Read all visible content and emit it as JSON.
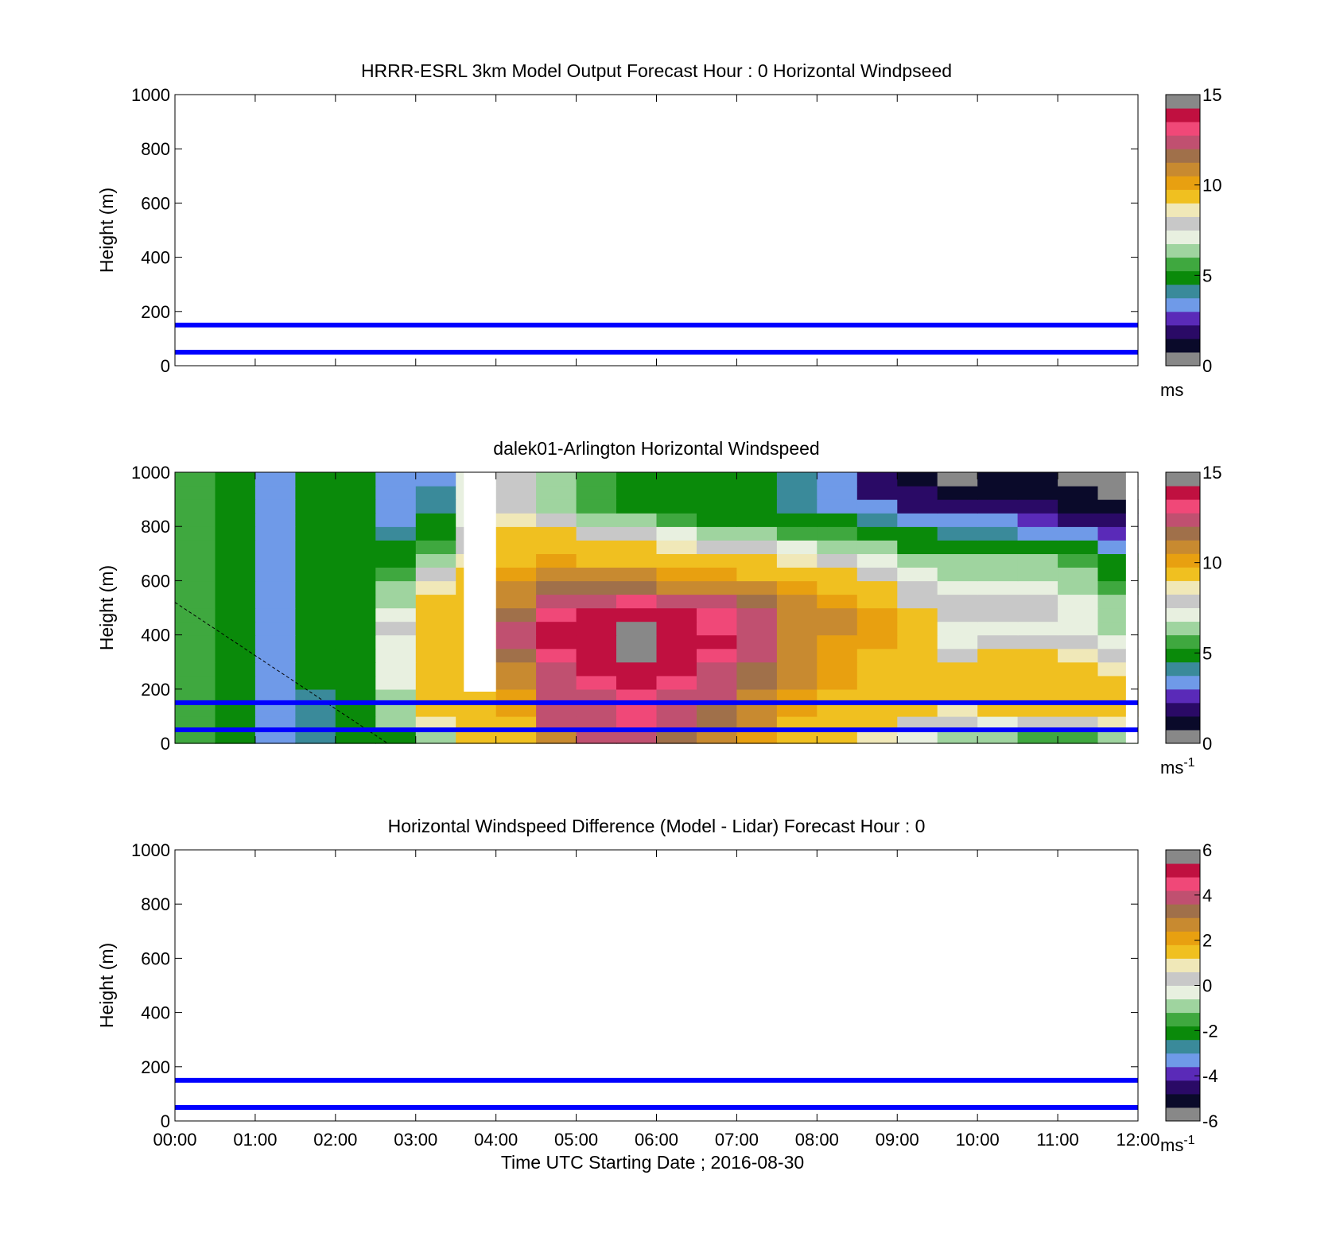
{
  "chart_data": [
    {
      "type": "heatmap",
      "title": "HRRR-ESRL 3km Model Output   Forecast Hour : 0 Horizontal Windpseed",
      "ylabel": "Height (m)",
      "xlabel": "",
      "ylim": [
        0,
        1000
      ],
      "xlim": [
        "00:00",
        "12:00"
      ],
      "yticks": [
        "0",
        "200",
        "400",
        "600",
        "800",
        "1000"
      ],
      "xticks": [],
      "hlines": [
        150,
        50
      ],
      "hline_color": "#0000ff",
      "colorbar": {
        "ticks": [
          "0",
          "5",
          "10",
          "15"
        ],
        "unit": "ms",
        "unit_sup": "",
        "range": [
          0,
          15
        ]
      },
      "field": "empty"
    },
    {
      "type": "heatmap",
      "title": "dalek01-Arlington  Horizontal Windspeed",
      "ylabel": "Height (m)",
      "xlabel": "",
      "ylim": [
        0,
        1000
      ],
      "xlim": [
        "00:00",
        "12:00"
      ],
      "yticks": [
        "0",
        "200",
        "400",
        "600",
        "800",
        "1000"
      ],
      "xticks": [],
      "hlines": [
        150,
        50
      ],
      "hline_color": "#0000ff",
      "colorbar": {
        "ticks": [
          "0",
          "5",
          "10",
          "15"
        ],
        "unit": "ms",
        "unit_sup": "-1",
        "range": [
          0,
          15
        ]
      },
      "field": "lidar",
      "speed_matrix_note_free": true,
      "heights": [
        25,
        75,
        125,
        175,
        225,
        275,
        325,
        375,
        425,
        475,
        525,
        575,
        625,
        675,
        725,
        775,
        825,
        875,
        925,
        975
      ],
      "times_hours": [
        0.25,
        0.75,
        1.25,
        1.75,
        2.25,
        2.75,
        3.25,
        3.75,
        4.25,
        4.75,
        5.25,
        5.75,
        6.25,
        6.75,
        7.25,
        7.75,
        8.25,
        8.75,
        9.25,
        9.75,
        10.25,
        10.75,
        11.25,
        11.75
      ],
      "speed": [
        [
          5.5,
          5.0,
          3.5,
          4.0,
          4.5,
          5.0,
          6.5,
          9.5,
          9.0,
          11.0,
          12.0,
          12.5,
          11.5,
          11.0,
          10.0,
          9.5,
          9.0,
          8.5,
          7.0,
          6.5,
          6.0,
          5.5,
          5.5,
          6.0
        ],
        [
          5.5,
          5.0,
          3.5,
          4.0,
          4.5,
          6.0,
          8.5,
          9.5,
          9.5,
          12.0,
          12.5,
          13.0,
          12.0,
          11.5,
          10.5,
          9.5,
          9.5,
          9.0,
          8.0,
          7.5,
          7.0,
          7.5,
          8.0,
          8.5
        ],
        [
          5.5,
          5.0,
          3.5,
          4.0,
          4.5,
          6.5,
          9.0,
          9.5,
          10.0,
          12.0,
          12.5,
          13.0,
          12.5,
          11.5,
          11.0,
          10.0,
          9.5,
          9.0,
          9.0,
          8.5,
          9.0,
          9.0,
          9.0,
          9.0
        ],
        [
          5.5,
          5.0,
          3.5,
          4.0,
          4.5,
          6.5,
          9.0,
          9.5,
          10.0,
          12.0,
          12.5,
          13.0,
          12.5,
          12.0,
          11.0,
          10.0,
          9.5,
          9.5,
          9.0,
          9.0,
          9.0,
          9.0,
          9.0,
          9.0
        ],
        [
          5.5,
          5.0,
          3.5,
          4.5,
          5.0,
          7.0,
          9.0,
          9.5,
          10.5,
          12.0,
          13.0,
          13.5,
          13.0,
          12.0,
          11.5,
          10.5,
          10.0,
          9.5,
          9.0,
          9.0,
          9.5,
          9.0,
          9.0,
          9.0
        ],
        [
          5.5,
          5.0,
          3.5,
          4.5,
          5.0,
          7.0,
          9.0,
          9.5,
          11.0,
          12.5,
          13.5,
          14.0,
          13.5,
          12.5,
          11.5,
          11.0,
          10.0,
          9.5,
          9.0,
          9.0,
          9.5,
          9.0,
          9.0,
          8.5
        ],
        [
          5.5,
          5.0,
          3.5,
          4.5,
          5.0,
          7.0,
          9.0,
          9.5,
          11.5,
          13.0,
          14.0,
          14.5,
          14.0,
          13.0,
          12.0,
          11.0,
          10.0,
          9.5,
          9.0,
          8.0,
          9.0,
          9.0,
          8.5,
          7.5
        ],
        [
          5.5,
          5.0,
          3.5,
          4.5,
          5.0,
          7.0,
          9.0,
          9.5,
          12.0,
          13.5,
          14.0,
          14.5,
          14.0,
          13.5,
          12.5,
          11.0,
          10.0,
          10.0,
          9.0,
          7.0,
          8.0,
          8.0,
          7.5,
          7.0
        ],
        [
          5.5,
          5.0,
          3.5,
          4.5,
          5.0,
          7.5,
          9.0,
          9.5,
          12.0,
          13.5,
          14.0,
          14.5,
          14.0,
          13.0,
          12.0,
          11.0,
          10.5,
          10.0,
          9.0,
          7.0,
          7.0,
          7.0,
          7.0,
          6.5
        ],
        [
          5.5,
          5.0,
          3.5,
          4.5,
          5.0,
          7.0,
          9.0,
          9.5,
          11.5,
          13.0,
          13.5,
          14.0,
          13.5,
          13.0,
          12.0,
          11.0,
          10.5,
          10.0,
          9.0,
          7.5,
          7.5,
          7.5,
          7.0,
          6.5
        ],
        [
          5.5,
          5.0,
          3.5,
          4.5,
          5.0,
          6.5,
          9.0,
          9.5,
          11.0,
          12.5,
          12.5,
          13.0,
          12.5,
          12.0,
          11.5,
          11.0,
          10.0,
          9.5,
          8.0,
          7.5,
          7.5,
          7.5,
          7.0,
          6.0
        ],
        [
          5.5,
          5.0,
          3.5,
          4.5,
          5.0,
          6.0,
          8.5,
          9.5,
          10.5,
          11.5,
          11.5,
          11.5,
          11.0,
          11.0,
          10.5,
          10.0,
          9.5,
          9.0,
          7.5,
          7.0,
          7.0,
          7.0,
          6.5,
          5.5
        ],
        [
          5.5,
          5.0,
          3.5,
          4.5,
          5.0,
          5.5,
          7.5,
          9.0,
          10.0,
          10.5,
          10.5,
          10.5,
          10.0,
          10.0,
          9.5,
          9.5,
          9.0,
          8.0,
          7.0,
          6.5,
          6.5,
          6.5,
          6.0,
          5.0
        ],
        [
          5.5,
          5.0,
          3.5,
          4.5,
          5.0,
          5.0,
          6.5,
          8.5,
          9.5,
          10.0,
          9.5,
          9.5,
          9.5,
          9.0,
          9.0,
          8.5,
          8.0,
          7.0,
          6.0,
          6.0,
          6.0,
          6.0,
          5.5,
          4.5
        ],
        [
          5.5,
          5.0,
          3.5,
          4.5,
          5.0,
          4.5,
          5.5,
          8.0,
          9.0,
          9.5,
          9.0,
          9.0,
          8.5,
          8.0,
          7.5,
          7.0,
          6.5,
          6.0,
          5.0,
          5.0,
          5.0,
          5.0,
          4.5,
          3.5
        ],
        [
          5.5,
          5.0,
          3.5,
          4.5,
          5.0,
          4.0,
          5.0,
          7.5,
          9.0,
          9.0,
          8.0,
          7.5,
          7.0,
          6.5,
          6.0,
          5.5,
          5.5,
          5.0,
          4.5,
          4.0,
          4.0,
          3.5,
          3.0,
          2.5
        ],
        [
          5.5,
          5.0,
          3.5,
          4.5,
          5.0,
          3.5,
          4.5,
          7.0,
          8.5,
          7.5,
          6.5,
          6.0,
          5.5,
          5.0,
          5.0,
          4.5,
          4.5,
          4.0,
          3.5,
          3.0,
          3.0,
          2.5,
          2.0,
          1.5
        ],
        [
          5.5,
          5.0,
          3.5,
          4.5,
          5.0,
          3.5,
          4.0,
          7.0,
          8.0,
          6.5,
          5.5,
          5.0,
          5.0,
          4.5,
          4.5,
          4.0,
          3.5,
          3.0,
          2.0,
          1.5,
          1.5,
          1.5,
          1.0,
          1.0
        ],
        [
          5.5,
          5.0,
          3.5,
          4.5,
          5.0,
          3.5,
          4.0,
          7.0,
          8.0,
          6.5,
          5.5,
          5.0,
          5.0,
          4.5,
          4.5,
          4.0,
          3.0,
          2.0,
          1.5,
          1.0,
          1.0,
          1.0,
          1.0,
          0.5
        ],
        [
          5.5,
          5.0,
          3.5,
          4.5,
          5.0,
          3.5,
          3.5,
          7.0,
          8.0,
          6.5,
          5.5,
          5.0,
          5.0,
          4.5,
          4.5,
          4.0,
          3.0,
          1.5,
          1.0,
          0.5,
          1.0,
          1.0,
          0.5,
          0.5
        ]
      ],
      "missing_band_hours": [
        3.6,
        4.0
      ],
      "dashed_line": {
        "from": [
          0,
          520
        ],
        "to": [
          2.65,
          0
        ]
      }
    },
    {
      "type": "heatmap",
      "title": "Horizontal Windspeed Difference (Model - Lidar) Forecast Hour : 0",
      "ylabel": "Height (m)",
      "xlabel": "Time UTC  Starting Date ; 2016-08-30",
      "ylim": [
        0,
        1000
      ],
      "xlim": [
        "00:00",
        "12:00"
      ],
      "yticks": [
        "0",
        "200",
        "400",
        "600",
        "800",
        "1000"
      ],
      "xticks": [
        "00:00",
        "01:00",
        "02:00",
        "03:00",
        "04:00",
        "05:00",
        "06:00",
        "07:00",
        "08:00",
        "09:00",
        "10:00",
        "11:00",
        "12:00"
      ],
      "hlines": [
        150,
        50
      ],
      "hline_color": "#0000ff",
      "colorbar": {
        "ticks": [
          "-6",
          "-4",
          "-2",
          "0",
          "2",
          "4",
          "6"
        ],
        "unit": "ms",
        "unit_sup": "-1",
        "range": [
          -6,
          6
        ]
      },
      "field": "empty"
    }
  ],
  "colormap": [
    "#888888",
    "#0a0a2a",
    "#2a0a66",
    "#5a2ab8",
    "#6f9ae8",
    "#3a8a9a",
    "#0a8a0a",
    "#3fa83f",
    "#9fd49f",
    "#e8f0e0",
    "#c8c8c8",
    "#f0e8b8",
    "#f0c020",
    "#e8a010",
    "#c88a30",
    "#a0704a",
    "#c05070",
    "#f04878",
    "#c01040",
    "#888888"
  ]
}
